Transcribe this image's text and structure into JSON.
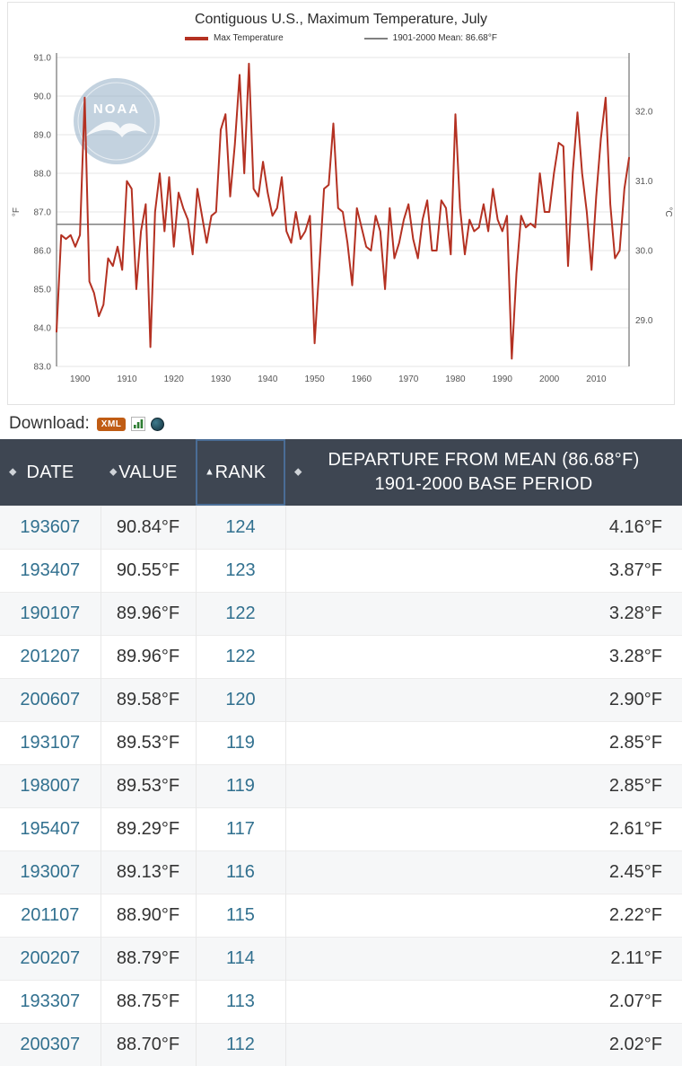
{
  "chart": {
    "title": "Contiguous U.S., Maximum Temperature, July",
    "legend": [
      {
        "label": "Max Temperature",
        "color": "#b43122"
      },
      {
        "label": "1901-2000 Mean: 86.68°F",
        "color": "#808080"
      }
    ],
    "watermark": "NOAA"
  },
  "chart_data": {
    "type": "line",
    "title": "Contiguous U.S., Maximum Temperature, July",
    "ylabel_left": "°F",
    "ylabel_right": "°C",
    "ylim_f": [
      83.0,
      91.0
    ],
    "yticks_f": [
      83.0,
      84.0,
      85.0,
      86.0,
      87.0,
      88.0,
      89.0,
      90.0,
      91.0
    ],
    "yticks_c": [
      29.0,
      30.0,
      31.0,
      32.0
    ],
    "xticks": [
      1900,
      1910,
      1920,
      1930,
      1940,
      1950,
      1960,
      1970,
      1980,
      1990,
      2000,
      2010
    ],
    "grid": "horizontal",
    "legend_position": "top",
    "mean_line": {
      "label": "1901-2000 Mean: 86.68°F",
      "value": 86.68,
      "color": "#808080"
    },
    "x": [
      1895,
      1896,
      1897,
      1898,
      1899,
      1900,
      1901,
      1902,
      1903,
      1904,
      1905,
      1906,
      1907,
      1908,
      1909,
      1910,
      1911,
      1912,
      1913,
      1914,
      1915,
      1916,
      1917,
      1918,
      1919,
      1920,
      1921,
      1922,
      1923,
      1924,
      1925,
      1926,
      1927,
      1928,
      1929,
      1930,
      1931,
      1932,
      1933,
      1934,
      1935,
      1936,
      1937,
      1938,
      1939,
      1940,
      1941,
      1942,
      1943,
      1944,
      1945,
      1946,
      1947,
      1948,
      1949,
      1950,
      1951,
      1952,
      1953,
      1954,
      1955,
      1956,
      1957,
      1958,
      1959,
      1960,
      1961,
      1962,
      1963,
      1964,
      1965,
      1966,
      1967,
      1968,
      1969,
      1970,
      1971,
      1972,
      1973,
      1974,
      1975,
      1976,
      1977,
      1978,
      1979,
      1980,
      1981,
      1982,
      1983,
      1984,
      1985,
      1986,
      1987,
      1988,
      1989,
      1990,
      1991,
      1992,
      1993,
      1994,
      1995,
      1996,
      1997,
      1998,
      1999,
      2000,
      2001,
      2002,
      2003,
      2004,
      2005,
      2006,
      2007,
      2008,
      2009,
      2010,
      2011,
      2012,
      2013,
      2014,
      2015,
      2016,
      2017
    ],
    "series": [
      {
        "name": "Max Temperature",
        "color": "#b43122",
        "values": [
          83.9,
          86.4,
          86.3,
          86.4,
          86.1,
          86.4,
          89.96,
          85.2,
          84.9,
          84.3,
          84.6,
          85.8,
          85.6,
          86.1,
          85.5,
          87.8,
          87.6,
          85.0,
          86.5,
          87.2,
          83.5,
          87.0,
          88.0,
          86.5,
          87.9,
          86.1,
          87.5,
          87.1,
          86.8,
          85.9,
          87.6,
          86.9,
          86.2,
          86.9,
          87.0,
          89.13,
          89.53,
          87.4,
          88.75,
          90.55,
          88.0,
          90.84,
          87.6,
          87.4,
          88.3,
          87.5,
          86.9,
          87.1,
          87.9,
          86.5,
          86.2,
          87.0,
          86.3,
          86.5,
          86.9,
          83.6,
          85.6,
          87.6,
          87.7,
          89.29,
          87.1,
          87.0,
          86.2,
          85.1,
          87.1,
          86.6,
          86.1,
          86.0,
          86.9,
          86.5,
          85.0,
          87.1,
          85.8,
          86.2,
          86.8,
          87.2,
          86.3,
          85.8,
          86.8,
          87.3,
          86.0,
          86.0,
          87.3,
          87.1,
          85.9,
          89.53,
          87.1,
          85.9,
          86.8,
          86.5,
          86.6,
          87.2,
          86.5,
          87.6,
          86.8,
          86.5,
          86.9,
          83.2,
          85.4,
          86.9,
          86.6,
          86.7,
          86.6,
          88.0,
          87.0,
          87.0,
          88.0,
          88.79,
          88.7,
          85.6,
          88.0,
          89.58,
          88.0,
          87.0,
          85.5,
          87.4,
          88.9,
          89.96,
          87.2,
          85.8,
          86.0,
          87.6,
          88.4
        ]
      }
    ]
  },
  "download": {
    "label": "Download:",
    "xml_label": "XML"
  },
  "table": {
    "columns": [
      {
        "label": "DATE",
        "sort": "none",
        "selected": false
      },
      {
        "label": "VALUE",
        "sort": "none",
        "selected": false
      },
      {
        "label": "RANK",
        "sort": "asc",
        "selected": true
      },
      {
        "label": "DEPARTURE FROM MEAN (86.68°F)",
        "label2": "1901-2000 BASE PERIOD",
        "sort": "none",
        "selected": false
      }
    ],
    "rows": [
      [
        "193607",
        "90.84°F",
        "124",
        "4.16°F"
      ],
      [
        "193407",
        "90.55°F",
        "123",
        "3.87°F"
      ],
      [
        "190107",
        "89.96°F",
        "122",
        "3.28°F"
      ],
      [
        "201207",
        "89.96°F",
        "122",
        "3.28°F"
      ],
      [
        "200607",
        "89.58°F",
        "120",
        "2.90°F"
      ],
      [
        "193107",
        "89.53°F",
        "119",
        "2.85°F"
      ],
      [
        "198007",
        "89.53°F",
        "119",
        "2.85°F"
      ],
      [
        "195407",
        "89.29°F",
        "117",
        "2.61°F"
      ],
      [
        "193007",
        "89.13°F",
        "116",
        "2.45°F"
      ],
      [
        "201107",
        "88.90°F",
        "115",
        "2.22°F"
      ],
      [
        "200207",
        "88.79°F",
        "114",
        "2.11°F"
      ],
      [
        "193307",
        "88.75°F",
        "113",
        "2.07°F"
      ],
      [
        "200307",
        "88.70°F",
        "112",
        "2.02°F"
      ]
    ]
  }
}
